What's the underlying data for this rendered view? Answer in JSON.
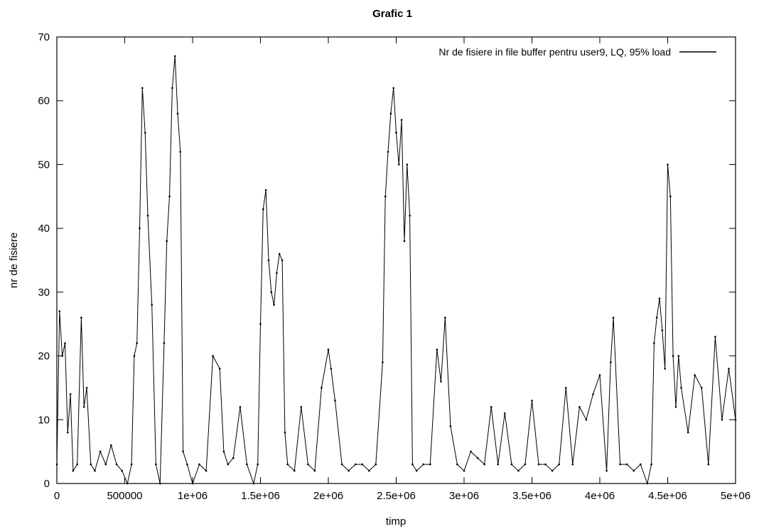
{
  "chart_data": {
    "type": "line",
    "title": "Grafic 1",
    "xlabel": "timp",
    "ylabel": "nr de fisiere",
    "xlim": [
      0,
      5000000
    ],
    "ylim": [
      0,
      70
    ],
    "legend_position": "top-right",
    "x_ticks": [
      {
        "value": 0,
        "label": "0"
      },
      {
        "value": 500000,
        "label": "500000"
      },
      {
        "value": 1000000,
        "label": "1e+06"
      },
      {
        "value": 1500000,
        "label": "1.5e+06"
      },
      {
        "value": 2000000,
        "label": "2e+06"
      },
      {
        "value": 2500000,
        "label": "2.5e+06"
      },
      {
        "value": 3000000,
        "label": "3e+06"
      },
      {
        "value": 3500000,
        "label": "3.5e+06"
      },
      {
        "value": 4000000,
        "label": "4e+06"
      },
      {
        "value": 4500000,
        "label": "4.5e+06"
      },
      {
        "value": 5000000,
        "label": "5e+06"
      }
    ],
    "y_ticks": [
      {
        "value": 0,
        "label": "0"
      },
      {
        "value": 10,
        "label": "10"
      },
      {
        "value": 20,
        "label": "20"
      },
      {
        "value": 30,
        "label": "30"
      },
      {
        "value": 40,
        "label": "40"
      },
      {
        "value": 50,
        "label": "50"
      },
      {
        "value": 60,
        "label": "60"
      },
      {
        "value": 70,
        "label": "70"
      }
    ],
    "series": [
      {
        "name": "Nr de fisiere in file buffer pentru user9, LQ, 95% load",
        "color": "#000000",
        "x": [
          0,
          20000,
          40000,
          60000,
          80000,
          100000,
          120000,
          150000,
          180000,
          200000,
          220000,
          250000,
          280000,
          320000,
          360000,
          400000,
          440000,
          480000,
          520000,
          550000,
          570000,
          590000,
          610000,
          630000,
          650000,
          670000,
          700000,
          730000,
          760000,
          790000,
          810000,
          830000,
          850000,
          870000,
          890000,
          910000,
          930000,
          960000,
          1000000,
          1050000,
          1100000,
          1150000,
          1200000,
          1230000,
          1260000,
          1300000,
          1350000,
          1400000,
          1450000,
          1480000,
          1500000,
          1520000,
          1540000,
          1560000,
          1580000,
          1600000,
          1620000,
          1640000,
          1660000,
          1680000,
          1700000,
          1750000,
          1800000,
          1850000,
          1900000,
          1950000,
          2000000,
          2020000,
          2050000,
          2100000,
          2150000,
          2200000,
          2250000,
          2300000,
          2350000,
          2400000,
          2420000,
          2440000,
          2460000,
          2480000,
          2500000,
          2520000,
          2540000,
          2560000,
          2580000,
          2600000,
          2620000,
          2650000,
          2700000,
          2750000,
          2800000,
          2830000,
          2860000,
          2900000,
          2950000,
          3000000,
          3050000,
          3100000,
          3150000,
          3200000,
          3250000,
          3300000,
          3350000,
          3400000,
          3450000,
          3500000,
          3550000,
          3600000,
          3650000,
          3700000,
          3750000,
          3800000,
          3850000,
          3900000,
          3950000,
          4000000,
          4050000,
          4080000,
          4100000,
          4150000,
          4200000,
          4250000,
          4300000,
          4350000,
          4380000,
          4400000,
          4420000,
          4440000,
          4460000,
          4480000,
          4500000,
          4520000,
          4540000,
          4560000,
          4580000,
          4600000,
          4650000,
          4700000,
          4750000,
          4800000,
          4850000,
          4900000,
          4950000,
          5000000
        ],
        "y": [
          3,
          27,
          20,
          22,
          8,
          14,
          2,
          3,
          26,
          12,
          15,
          3,
          2,
          5,
          3,
          6,
          3,
          2,
          0,
          3,
          20,
          22,
          40,
          62,
          55,
          42,
          28,
          3,
          0,
          22,
          38,
          45,
          62,
          67,
          58,
          52,
          5,
          3,
          0,
          3,
          2,
          20,
          18,
          5,
          3,
          4,
          12,
          3,
          0,
          3,
          25,
          43,
          46,
          35,
          30,
          28,
          33,
          36,
          35,
          8,
          3,
          2,
          12,
          3,
          2,
          15,
          21,
          18,
          13,
          3,
          2,
          3,
          3,
          2,
          3,
          19,
          45,
          52,
          58,
          62,
          55,
          50,
          57,
          38,
          50,
          42,
          3,
          2,
          3,
          3,
          21,
          16,
          26,
          9,
          3,
          2,
          5,
          4,
          3,
          12,
          3,
          11,
          3,
          2,
          3,
          13,
          3,
          3,
          2,
          3,
          15,
          3,
          12,
          10,
          14,
          17,
          2,
          19,
          26,
          3,
          3,
          2,
          3,
          0,
          3,
          22,
          26,
          29,
          24,
          18,
          50,
          45,
          20,
          12,
          20,
          15,
          8,
          17,
          15,
          3,
          23,
          10,
          18,
          10
        ]
      }
    ]
  }
}
